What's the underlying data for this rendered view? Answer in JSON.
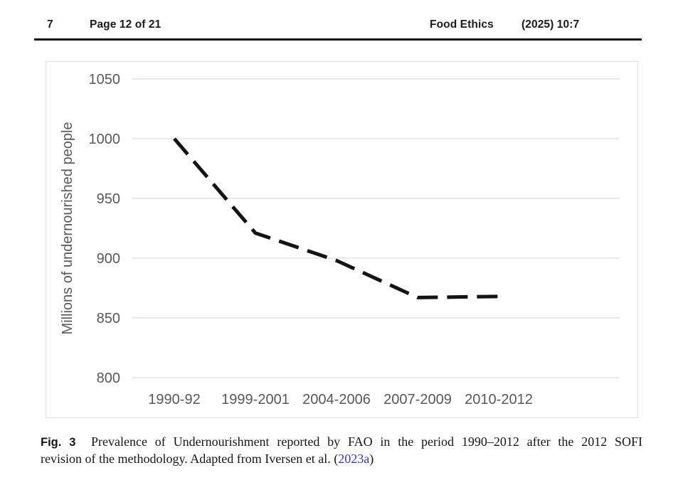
{
  "header": {
    "page_number": "7",
    "page_info": "Page 12 of 21",
    "journal": "Food Ethics",
    "issue": "(2025) 10:7"
  },
  "chart_data": {
    "type": "line",
    "categories": [
      "1990-92",
      "1999-2001",
      "2004-2006",
      "2007-2009",
      "2010-2012"
    ],
    "values": [
      1000,
      921,
      898,
      867,
      868
    ],
    "title": "",
    "xlabel": "",
    "ylabel": "Millions of undernourished people",
    "ylim": [
      800,
      1050
    ],
    "ytick_step": 50,
    "grid": true,
    "legend": "none",
    "line_style": "dashed"
  },
  "caption": {
    "label": "Fig. 3",
    "line1": "Prevalence of Undernourishment reported by FAO in the period 1990–2012 after the 2012 SOFI",
    "line2_before_link": "revision of the methodology. Adapted from Iversen et al. (",
    "link": "2023a",
    "line2_after_link": ")"
  },
  "colors": {
    "grid_line": "#e3e3e3",
    "axis_text": "#595959",
    "data_line": "#141414",
    "chart_border": "#e0e0e0",
    "rule": "#111111",
    "link": "#3533cd"
  }
}
